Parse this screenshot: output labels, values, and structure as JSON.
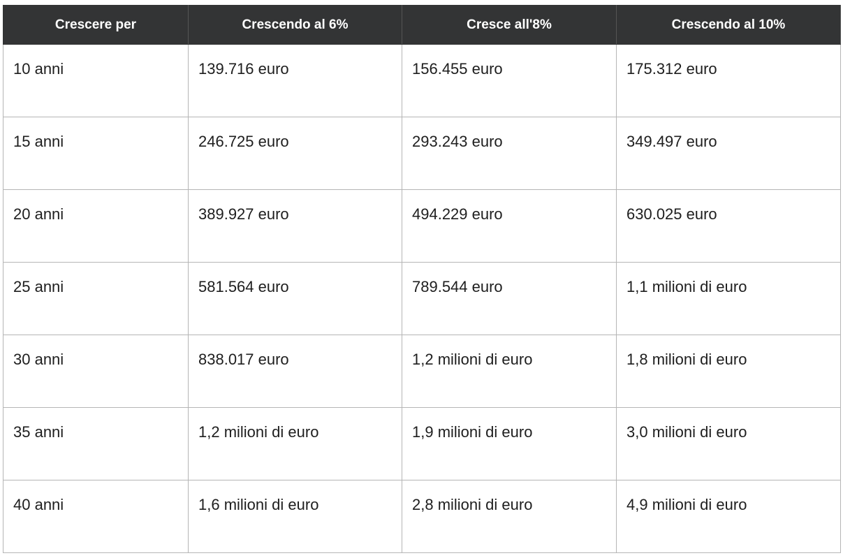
{
  "table": {
    "headers": [
      "Crescere per",
      "Crescendo al 6%",
      "Cresce all'8%",
      "Crescendo al 10%"
    ],
    "rows": [
      [
        "10 anni",
        "139.716 euro",
        "156.455 euro",
        "175.312 euro"
      ],
      [
        "15 anni",
        "246.725 euro",
        "293.243 euro",
        "349.497 euro"
      ],
      [
        "20 anni",
        "389.927 euro",
        "494.229 euro",
        "630.025 euro"
      ],
      [
        "25 anni",
        "581.564 euro",
        "789.544 euro",
        "1,1 milioni di euro"
      ],
      [
        "30 anni",
        "838.017 euro",
        "1,2 milioni di euro",
        "1,8 milioni di euro"
      ],
      [
        "35 anni",
        "1,2 milioni di euro",
        "1,9 milioni di euro",
        "3,0 milioni di euro"
      ],
      [
        "40 anni",
        "1,6 milioni di euro",
        "2,8 milioni di euro",
        "4,9 milioni di euro"
      ]
    ]
  }
}
